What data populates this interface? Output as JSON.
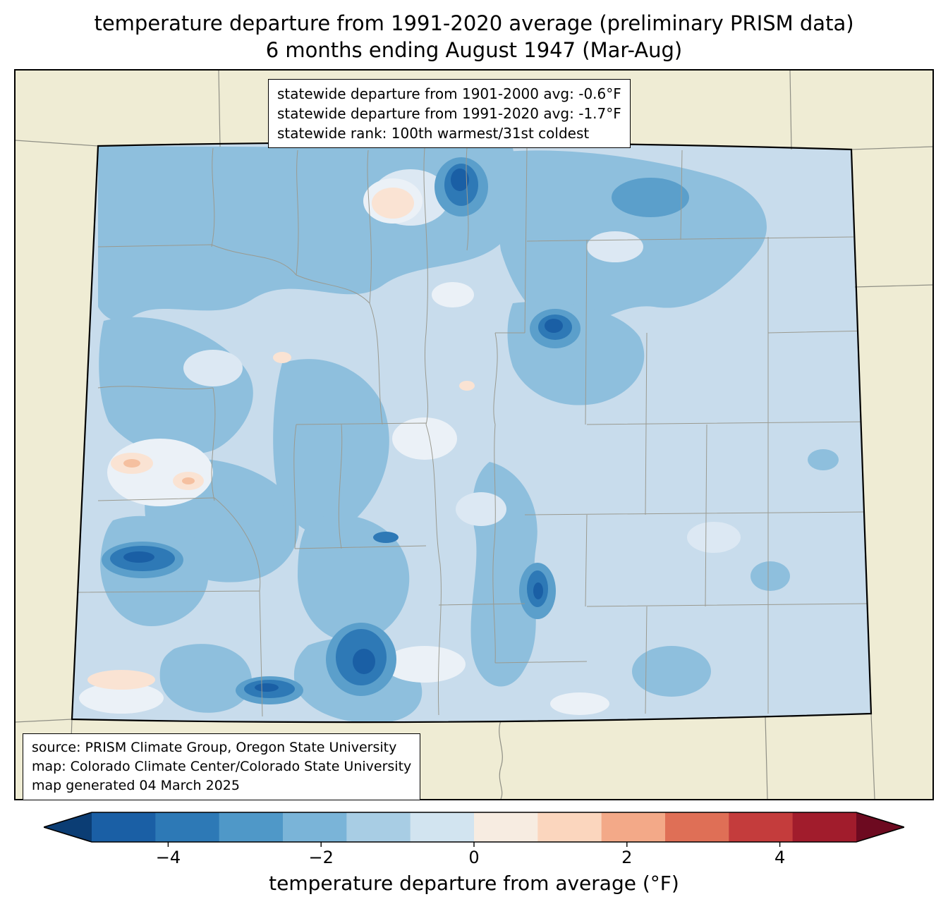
{
  "title": {
    "line1": "temperature departure from 1991-2020 average (preliminary PRISM data)",
    "line2": "6 months ending August 1947 (Mar-Aug)"
  },
  "stats_box": {
    "lines": [
      "statewide departure from 1901-2000 avg: -0.6°F",
      "statewide departure from 1991-2020 avg: -1.7°F",
      "statewide rank: 100th warmest/31st coldest"
    ]
  },
  "source_box": {
    "lines": [
      "source: PRISM Climate Group, Oregon State University",
      "map: Colorado Climate Center/Colorado State University",
      "map generated 04 March 2025"
    ]
  },
  "colorbar": {
    "label": "temperature departure from average (°F)",
    "domain": [
      -5,
      5
    ],
    "ticks": [
      {
        "value": -4,
        "label": "−4"
      },
      {
        "value": -2,
        "label": "−2"
      },
      {
        "value": 0,
        "label": "0"
      },
      {
        "value": 2,
        "label": "2"
      },
      {
        "value": 4,
        "label": "4"
      }
    ],
    "left_arrow": "#0b3d74",
    "right_arrow": "#6d0a20",
    "segments": [
      "#1a5fa5",
      "#2d79b6",
      "#4f98c8",
      "#7ab4d8",
      "#a8cde4",
      "#d2e4f0",
      "#f7ece1",
      "#fbd6be",
      "#f3a988",
      "#df6f56",
      "#c43c3c",
      "#a11c2c"
    ]
  },
  "palette": {
    "beige": "#efecd4",
    "base": "#c8dcec",
    "light": "#dce8f3",
    "pale": "#ebf1f7",
    "med": "#8ebfdd",
    "deep": "#5b9fcb",
    "dark": "#2e79b6",
    "darkest": "#1a5fa5",
    "pink": "#fae3d3",
    "pink2": "#f5c0a0",
    "county": "#9a9a90",
    "nbr": "#8f8f85",
    "frame": "#000000"
  }
}
